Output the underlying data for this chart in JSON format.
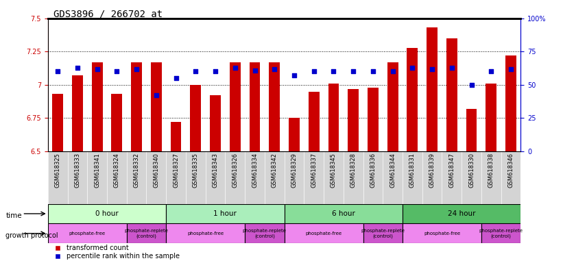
{
  "title": "GDS3896 / 266702_at",
  "samples": [
    "GSM618325",
    "GSM618333",
    "GSM618341",
    "GSM618324",
    "GSM618332",
    "GSM618340",
    "GSM618327",
    "GSM618335",
    "GSM618343",
    "GSM618326",
    "GSM618334",
    "GSM618342",
    "GSM618329",
    "GSM618337",
    "GSM618345",
    "GSM618328",
    "GSM618336",
    "GSM618344",
    "GSM618331",
    "GSM618339",
    "GSM618347",
    "GSM618330",
    "GSM618338",
    "GSM618346"
  ],
  "bar_values": [
    6.93,
    7.07,
    7.17,
    6.93,
    7.17,
    7.17,
    6.72,
    7.0,
    6.92,
    7.17,
    7.17,
    7.17,
    6.75,
    6.95,
    7.01,
    6.97,
    6.98,
    7.17,
    7.28,
    7.43,
    7.35,
    6.82,
    7.01,
    7.22
  ],
  "percentile_values": [
    60,
    63,
    62,
    60,
    62,
    42,
    55,
    60,
    60,
    63,
    61,
    62,
    57,
    60,
    60,
    60,
    60,
    60,
    63,
    62,
    63,
    50,
    60,
    62
  ],
  "bar_color": "#cc0000",
  "dot_color": "#0000cc",
  "ylim": [
    6.5,
    7.5
  ],
  "yticks": [
    6.5,
    6.75,
    7.0,
    7.25,
    7.5
  ],
  "ytick_labels": [
    "6.5",
    "6.75",
    "7",
    "7.25",
    "7.5"
  ],
  "hlines": [
    6.75,
    7.0,
    7.25
  ],
  "time_groups": [
    {
      "label": "0 hour",
      "start": 0,
      "end": 6,
      "color": "#ccffcc"
    },
    {
      "label": "1 hour",
      "start": 6,
      "end": 12,
      "color": "#aaeebb"
    },
    {
      "label": "6 hour",
      "start": 12,
      "end": 18,
      "color": "#88dd99"
    },
    {
      "label": "24 hour",
      "start": 18,
      "end": 24,
      "color": "#55bb66"
    }
  ],
  "protocol_groups": [
    {
      "label": "phosphate-free",
      "start": 0,
      "end": 4,
      "color": "#ee88ee"
    },
    {
      "label": "phosphate-replete\n(control)",
      "start": 4,
      "end": 6,
      "color": "#cc55cc"
    },
    {
      "label": "phosphate-free",
      "start": 6,
      "end": 10,
      "color": "#ee88ee"
    },
    {
      "label": "phosphate-replete\n(control)",
      "start": 10,
      "end": 12,
      "color": "#cc55cc"
    },
    {
      "label": "phosphate-free",
      "start": 12,
      "end": 16,
      "color": "#ee88ee"
    },
    {
      "label": "phosphate-replete\n(control)",
      "start": 16,
      "end": 18,
      "color": "#cc55cc"
    },
    {
      "label": "phosphate-free",
      "start": 18,
      "end": 22,
      "color": "#ee88ee"
    },
    {
      "label": "phosphate-replete\n(control)",
      "start": 22,
      "end": 24,
      "color": "#cc55cc"
    }
  ],
  "bar_width": 0.55,
  "dot_size": 18,
  "sample_bg_color": "#d4d4d4",
  "title_fontsize": 10,
  "tick_fontsize": 7,
  "label_fontsize": 6
}
